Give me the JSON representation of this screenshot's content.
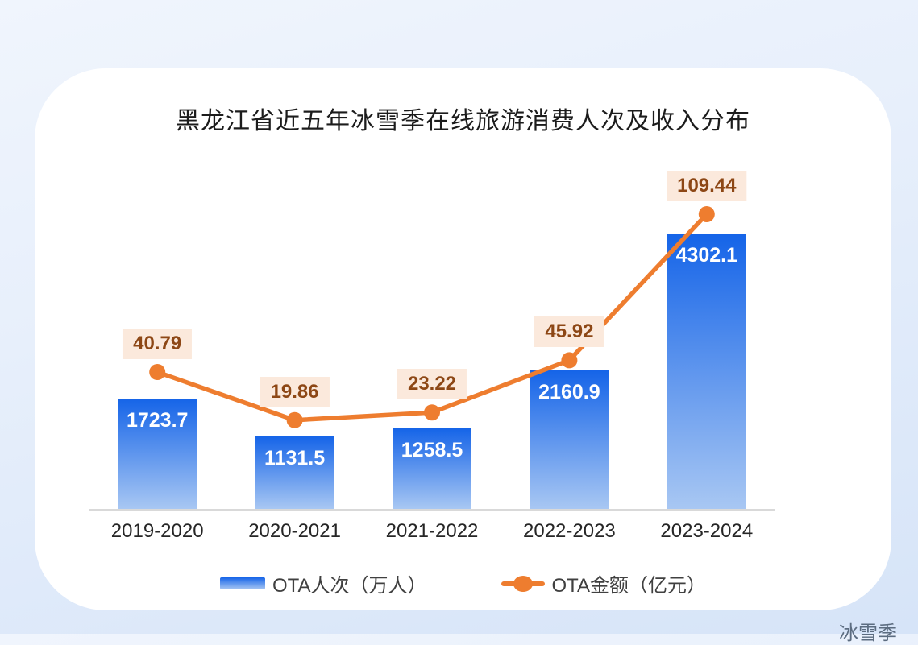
{
  "page": {
    "background_top": "#f0f5fd",
    "background_bottom": "#d6e4f8",
    "card_background": "#ffffff"
  },
  "chart_data": {
    "type": "combo_bar_line",
    "title": "黑龙江省近五年冰雪季在线旅游消费人次及收入分布",
    "categories": [
      "2019-2020",
      "2020-2021",
      "2021-2022",
      "2022-2023",
      "2023-2024"
    ],
    "x_axis_title": "冰雪季",
    "legend_position": "bottom",
    "grid": false,
    "axes_visible": false,
    "series": [
      {
        "name": "OTA人次（万人）",
        "type": "bar",
        "values": [
          1723.7,
          1131.5,
          1258.5,
          2160.9,
          4302.1
        ],
        "colors": {
          "top": "#1564e8",
          "bottom": "#a8c7f3"
        },
        "label_color": "#ffffff"
      },
      {
        "name": "OTA金额（亿元）",
        "type": "line",
        "values": [
          40.79,
          19.86,
          23.22,
          45.92,
          109.44
        ],
        "color": "#ee7d2f",
        "label_bg": "#fbe9dc",
        "label_color": "#8d4715"
      }
    ],
    "y1_axis": {
      "min": 0,
      "implied_max": 5370,
      "visible": false
    },
    "y2_axis": {
      "visible": false
    },
    "axis_line_color": "#d9d9d9"
  }
}
